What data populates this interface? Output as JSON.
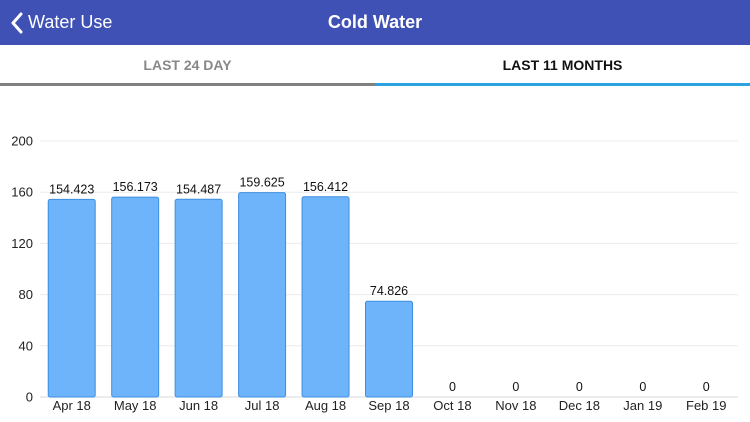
{
  "nav": {
    "back_label": "Water Use",
    "title": "Cold Water"
  },
  "tabs": [
    {
      "label": "LAST 24 DAY",
      "active": false
    },
    {
      "label": "LAST 11 MONTHS",
      "active": true
    }
  ],
  "colors": {
    "header": "#3f51b5",
    "bar_fill": "#6eb4fb",
    "bar_stroke": "#3d8fe0",
    "active_tab_underline": "#2aa3e0",
    "inactive_tab_underline": "#808080"
  },
  "chart_data": {
    "type": "bar",
    "title": "",
    "xlabel": "",
    "ylabel": "",
    "categories": [
      "Apr 18",
      "May 18",
      "Jun 18",
      "Jul 18",
      "Aug 18",
      "Sep 18",
      "Oct 18",
      "Nov 18",
      "Dec 18",
      "Jan 19",
      "Feb 19"
    ],
    "values": [
      154.423,
      156.173,
      154.487,
      159.625,
      156.412,
      74.826,
      0,
      0,
      0,
      0,
      0
    ],
    "value_labels": [
      "154.423",
      "156.173",
      "154.487",
      "159.625",
      "156.412",
      "74.826",
      "0",
      "0",
      "0",
      "0",
      "0"
    ],
    "ylim": [
      0,
      200
    ],
    "yticks": [
      "0",
      "40",
      "80",
      "120",
      "160",
      "200"
    ],
    "ytick_values": [
      0,
      40,
      80,
      120,
      160,
      200
    ],
    "grid": true,
    "legend": "none"
  }
}
